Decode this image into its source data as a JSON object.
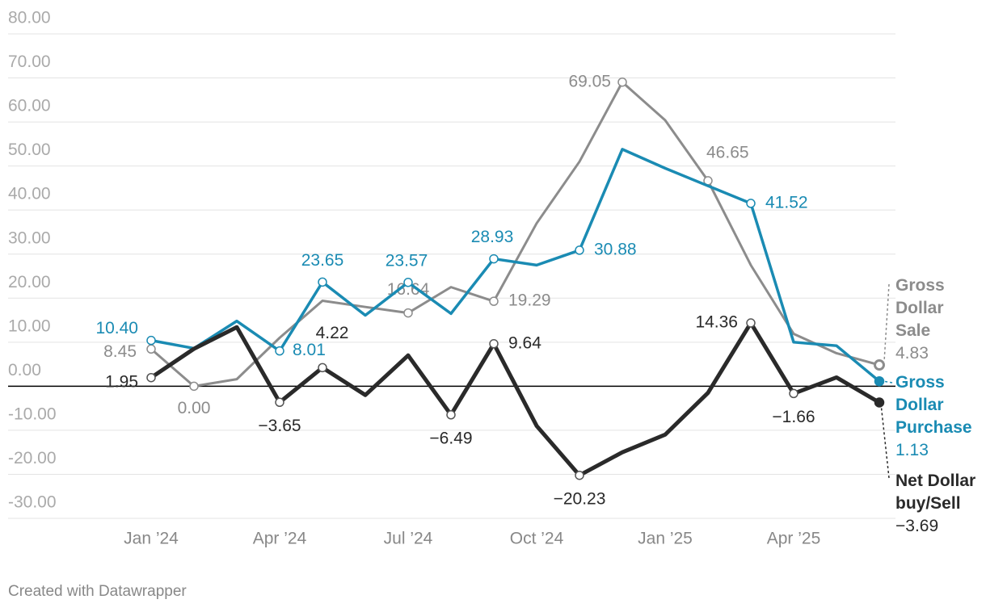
{
  "chart_data": {
    "type": "line",
    "categories": [
      "Jan ’24",
      null,
      null,
      "Apr ’24",
      null,
      null,
      "Jul ’24",
      null,
      null,
      "Oct ’24",
      null,
      null,
      "Jan ’25",
      null,
      null,
      "Apr ’25",
      null,
      null
    ],
    "series": [
      {
        "name": "Gross Dollar Sale",
        "color": "#8c8c8c",
        "values": [
          8.45,
          0.0,
          1.6,
          11,
          19.4,
          18,
          16.64,
          22.5,
          19.29,
          37,
          51,
          69.05,
          60.4,
          46.65,
          27.5,
          11.9,
          7.5,
          4.83
        ],
        "value_labels": [
          "8.45",
          "0.00",
          null,
          null,
          null,
          null,
          "16.64",
          null,
          "19.29",
          null,
          null,
          "69.05",
          null,
          "46.65",
          null,
          null,
          null,
          "4.83"
        ]
      },
      {
        "name": "Gross Dollar Purchase",
        "color": "#1a8bb3",
        "values": [
          10.4,
          8.6,
          14.8,
          8.01,
          23.65,
          16.1,
          23.57,
          16.5,
          28.93,
          27.5,
          30.88,
          53.8,
          49.5,
          45.5,
          41.52,
          10,
          9.2,
          1.13
        ],
        "value_labels": [
          "10.40",
          null,
          null,
          "8.01",
          "23.65",
          null,
          "23.57",
          null,
          "28.93",
          null,
          "30.88",
          null,
          null,
          null,
          "41.52",
          null,
          null,
          "1.13"
        ]
      },
      {
        "name": "Net Dollar buy/Sell",
        "color": "#2a2a2a",
        "values": [
          1.95,
          8.5,
          13.4,
          -3.65,
          4.22,
          -2,
          7,
          -6.49,
          9.64,
          -9,
          -20.23,
          -15,
          -11,
          -1.5,
          14.36,
          -1.66,
          2,
          -3.69
        ],
        "value_labels": [
          "1.95",
          null,
          null,
          "−3.65",
          "4.22",
          null,
          null,
          "−6.49",
          "9.64",
          null,
          "−20.23",
          null,
          null,
          null,
          "14.36",
          "−1.66",
          null,
          "−3.69"
        ]
      }
    ],
    "ylim": [
      -30,
      80
    ],
    "yticks": [
      {
        "value": -30,
        "label": "-30.00"
      },
      {
        "value": -20,
        "label": "-20.00"
      },
      {
        "value": -10,
        "label": "-10.00"
      },
      {
        "value": 0,
        "label": "0.00"
      },
      {
        "value": 10,
        "label": "10.00"
      },
      {
        "value": 20,
        "label": "20.00"
      },
      {
        "value": 30,
        "label": "30.00"
      },
      {
        "value": 40,
        "label": "40.00"
      },
      {
        "value": 50,
        "label": "50.00"
      },
      {
        "value": 60,
        "label": "60.00"
      },
      {
        "value": 70,
        "label": "70.00"
      },
      {
        "value": 80,
        "label": "80.00"
      }
    ],
    "grid": true,
    "footer": "Created with Datawrapper"
  }
}
